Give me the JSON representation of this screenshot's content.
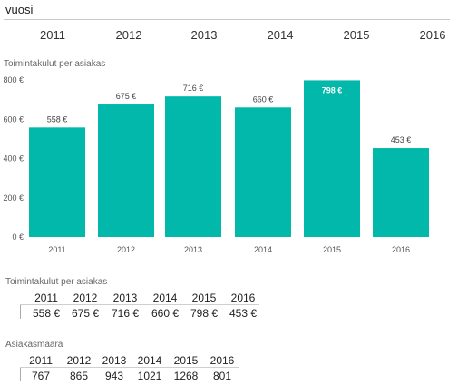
{
  "slicer": {
    "title": "vuosi",
    "years": [
      "2011",
      "2012",
      "2013",
      "2014",
      "2015",
      "2016"
    ]
  },
  "chart_data": {
    "type": "bar",
    "title": "Toimintakulut per asiakas",
    "categories": [
      "2011",
      "2012",
      "2013",
      "2014",
      "2015",
      "2016"
    ],
    "values": [
      558,
      675,
      716,
      660,
      798,
      453
    ],
    "data_labels": [
      "558 €",
      "675 €",
      "716 €",
      "660 €",
      "798 €",
      "453 €"
    ],
    "highlight_index": 4,
    "ylim": [
      0,
      800
    ],
    "yticks": [
      0,
      200,
      400,
      600,
      800
    ],
    "ytick_labels": [
      "0 €",
      "200 €",
      "400 €",
      "600 €",
      "800 €"
    ],
    "bar_color": "#01B8AA",
    "grid": false,
    "legend": "none"
  },
  "table_costs": {
    "title": "Toimintakulut per asiakas",
    "years": [
      "2011",
      "2012",
      "2013",
      "2014",
      "2015",
      "2016"
    ],
    "values": [
      "558 €",
      "675 €",
      "716 €",
      "660 €",
      "798 €",
      "453 €"
    ]
  },
  "table_customers": {
    "title": "Asiakasmäärä",
    "years": [
      "2011",
      "2012",
      "2013",
      "2014",
      "2015",
      "2016"
    ],
    "values": [
      "767",
      "865",
      "943",
      "1021",
      "1268",
      "801"
    ]
  }
}
